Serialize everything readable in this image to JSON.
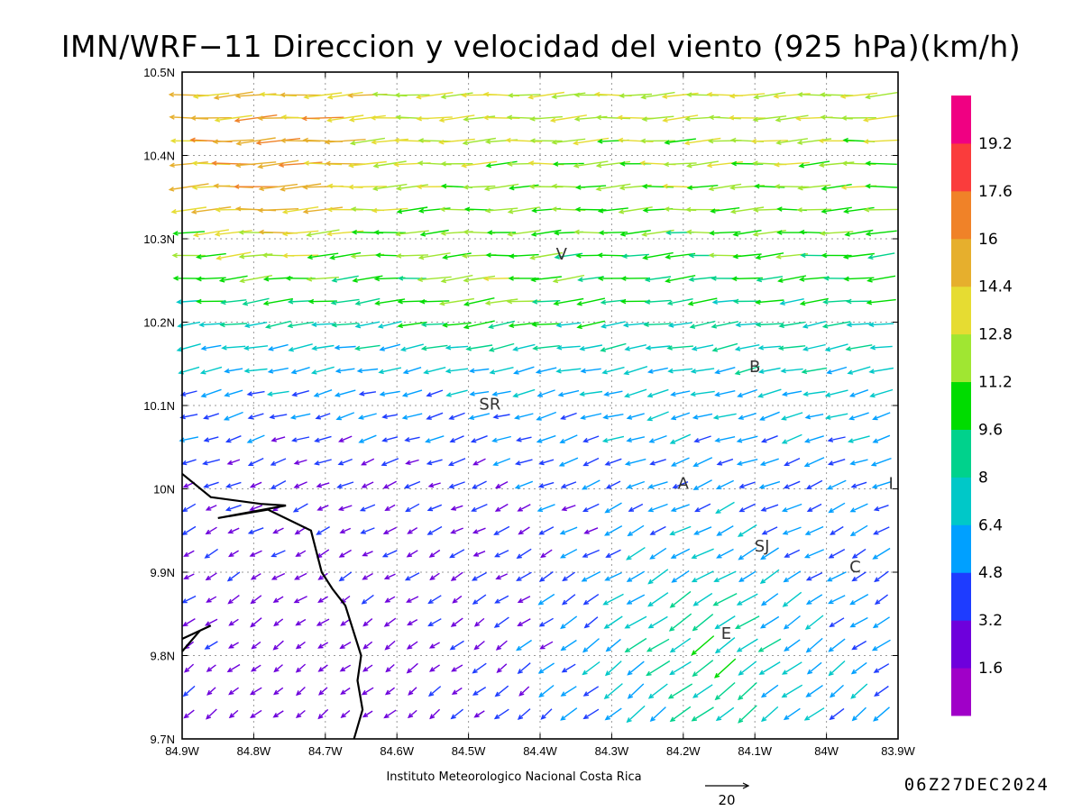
{
  "title": "IMN/WRF−11 Direccion y velocidad del viento (925 hPa)(km/h)",
  "credit": "Instituto Meteorologico Nacional Costa Rica",
  "timestamp": "06Z27DEC2024",
  "reference_vector": {
    "label": "20",
    "value": 20
  },
  "x_ticks": [
    {
      "lon": -84.9,
      "label": "84.9W"
    },
    {
      "lon": -84.8,
      "label": "84.8W"
    },
    {
      "lon": -84.7,
      "label": "84.7W"
    },
    {
      "lon": -84.6,
      "label": "84.6W"
    },
    {
      "lon": -84.5,
      "label": "84.5W"
    },
    {
      "lon": -84.4,
      "label": "84.4W"
    },
    {
      "lon": -84.3,
      "label": "84.3W"
    },
    {
      "lon": -84.2,
      "label": "84.2W"
    },
    {
      "lon": -84.1,
      "label": "84.1W"
    },
    {
      "lon": -84.0,
      "label": "84W"
    },
    {
      "lon": -83.9,
      "label": "83.9W"
    }
  ],
  "y_ticks": [
    {
      "lat": 9.7,
      "label": "9.7N"
    },
    {
      "lat": 9.8,
      "label": "9.8N"
    },
    {
      "lat": 9.9,
      "label": "9.9N"
    },
    {
      "lat": 10.0,
      "label": "10N"
    },
    {
      "lat": 10.1,
      "label": "10.1N"
    },
    {
      "lat": 10.2,
      "label": "10.2N"
    },
    {
      "lat": 10.3,
      "label": "10.3N"
    },
    {
      "lat": 10.4,
      "label": "10.4N"
    },
    {
      "lat": 10.5,
      "label": "10.5N"
    }
  ],
  "extent": {
    "lon_min": -84.9,
    "lon_max": -83.9,
    "lat_min": 9.7,
    "lat_max": 10.5
  },
  "places": [
    {
      "label": "V",
      "lon": -84.37,
      "lat": 10.275
    },
    {
      "label": "SR",
      "lon": -84.47,
      "lat": 10.095
    },
    {
      "label": "B",
      "lon": -84.1,
      "lat": 10.14
    },
    {
      "label": "A",
      "lon": -84.2,
      "lat": 10.0
    },
    {
      "label": "I",
      "lon": -83.91,
      "lat": 10.0
    },
    {
      "label": "SJ",
      "lon": -84.09,
      "lat": 9.925
    },
    {
      "label": "C",
      "lon": -83.96,
      "lat": 9.9
    },
    {
      "label": "E",
      "lon": -84.14,
      "lat": 9.82
    }
  ],
  "colorbar": {
    "colors": [
      "#a000c8",
      "#6e00dc",
      "#1e3cff",
      "#00a0ff",
      "#00c8c8",
      "#00d28c",
      "#00dc00",
      "#a0e632",
      "#e6dc32",
      "#e6af2d",
      "#f08228",
      "#fa3c3c",
      "#f00082"
    ],
    "labels": [
      "1.6",
      "3.2",
      "4.8",
      "6.4",
      "8",
      "9.6",
      "11.2",
      "12.8",
      "14.4",
      "16",
      "17.6",
      "19.2"
    ]
  },
  "coastline": [
    [
      [
        -84.9,
        10.018
      ],
      [
        -84.86,
        9.99
      ],
      [
        -84.79,
        9.982
      ],
      [
        -84.755,
        9.98
      ],
      [
        -84.85,
        9.965
      ],
      [
        -84.78,
        9.975
      ],
      [
        -84.72,
        9.95
      ],
      [
        -84.705,
        9.9
      ],
      [
        -84.69,
        9.88
      ],
      [
        -84.672,
        9.86
      ],
      [
        -84.65,
        9.8
      ],
      [
        -84.655,
        9.77
      ],
      [
        -84.648,
        9.735
      ],
      [
        -84.66,
        9.7
      ]
    ],
    [
      [
        -84.9,
        9.82
      ],
      [
        -84.86,
        9.836
      ]
    ],
    [
      [
        -84.9,
        9.805
      ],
      [
        -84.875,
        9.83
      ]
    ]
  ],
  "chart_data": {
    "type": "vector-field",
    "variable": "Direccion y velocidad del viento (925 hPa)",
    "units": "km/h",
    "grid": true,
    "lon_range": [
      -84.9,
      -83.9
    ],
    "lat_range": [
      9.7,
      10.5
    ],
    "wind_regions_approx": [
      {
        "area": "north 10.35N-10.5N",
        "direction": "from east",
        "speed_kmh": [
          11,
          17
        ]
      },
      {
        "area": "northwest corner 10.35N-10.4N, 84.9W-84.75W",
        "direction": "from east-northeast",
        "speed_kmh": [
          17.6,
          20
        ]
      },
      {
        "area": "central 10.05N-10.3N",
        "direction": "from east-northeast",
        "speed_kmh": [
          6,
          13
        ]
      },
      {
        "area": "south-central 9.8N-10.0N",
        "direction": "from northeast",
        "speed_kmh": [
          4,
          8
        ]
      },
      {
        "area": "southwest near coast 9.75N-9.85N",
        "direction": "from northeast",
        "speed_kmh": [
          1.6,
          4
        ]
      },
      {
        "area": "southeast 9.7N-9.9N, 84.25W-84.0W",
        "direction": "from northeast",
        "speed_kmh": [
          8,
          13
        ]
      }
    ]
  }
}
